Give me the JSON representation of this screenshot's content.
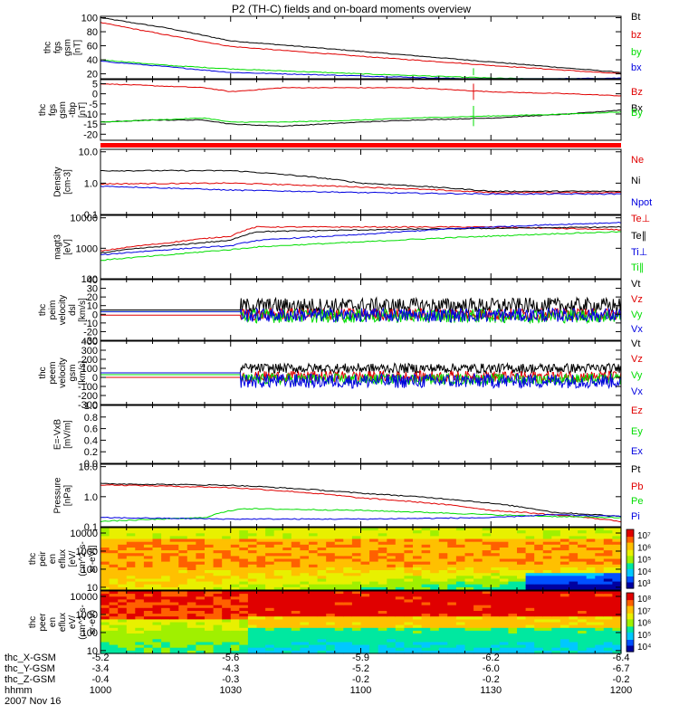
{
  "title": "P2 (TH-C) fields and on-board moments overview",
  "colors": {
    "black": "#000000",
    "red": "#e00000",
    "green": "#00dd00",
    "blue": "#0000e0",
    "bar": "#ff0000"
  },
  "chart_data": [
    {
      "type": "line",
      "ylabel_lines": [
        "thc",
        "fgs",
        "gsm",
        "[nT]"
      ],
      "ylim": [
        13,
        102
      ],
      "yticks": [
        "100",
        "80",
        "60",
        "40",
        "20"
      ],
      "ytick_values": [
        100,
        80,
        60,
        40,
        20
      ],
      "series": [
        {
          "name": "Bt",
          "color": "#000000",
          "x": [
            0,
            0.13,
            0.25,
            0.5,
            0.75,
            1
          ],
          "values": [
            100,
            85,
            67,
            52,
            37,
            22
          ]
        },
        {
          "name": "bz",
          "color": "#e00000",
          "x": [
            0,
            0.13,
            0.25,
            0.5,
            0.75,
            1
          ],
          "values": [
            93,
            75,
            59,
            45,
            32,
            20
          ]
        },
        {
          "name": "by",
          "color": "#00dd00",
          "x": [
            0,
            0.13,
            0.25,
            0.5,
            0.75,
            1
          ],
          "values": [
            40,
            32,
            27,
            20,
            14,
            10
          ]
        },
        {
          "name": "bx",
          "color": "#0000e0",
          "x": [
            0,
            0.13,
            0.25,
            0.5,
            0.75,
            1
          ],
          "values": [
            38,
            30,
            22,
            17,
            12,
            14
          ]
        }
      ]
    },
    {
      "type": "line",
      "ylabel_lines": [
        "thc",
        "fgs",
        "gsm",
        "-tbp",
        "[nT]"
      ],
      "ylim": [
        -23,
        7
      ],
      "yticks": [
        "5",
        "0",
        "-5",
        "-10",
        "-15",
        "-20"
      ],
      "ytick_values": [
        5,
        0,
        -5,
        -10,
        -15,
        -20
      ],
      "series": [
        {
          "name": "Bz",
          "color": "#e00000",
          "x": [
            0,
            0.1,
            0.2,
            0.25,
            0.35,
            0.5,
            0.6,
            0.75,
            0.9,
            1
          ],
          "values": [
            5,
            4,
            3,
            1,
            3,
            3,
            3,
            1,
            0,
            -1
          ]
        },
        {
          "name": "Bx",
          "color": "#000000",
          "x": [
            0,
            0.1,
            0.2,
            0.25,
            0.35,
            0.5,
            0.6,
            0.75,
            0.9,
            1
          ],
          "values": [
            -14,
            -13,
            -13,
            -15,
            -16,
            -14,
            -13,
            -12,
            -10,
            -8
          ]
        },
        {
          "name": "By",
          "color": "#00dd00",
          "x": [
            0,
            0.1,
            0.2,
            0.25,
            0.35,
            0.5,
            0.6,
            0.75,
            0.9,
            1
          ],
          "values": [
            -14,
            -13,
            -12,
            -14,
            -14,
            -13,
            -12,
            -11,
            -10,
            -9
          ]
        }
      ]
    },
    {
      "type": "line",
      "log": true,
      "ylabel_lines": [
        "Density",
        "[cm-3]"
      ],
      "ylim": [
        0.1,
        12
      ],
      "yticks": [
        "10.0",
        "1.0",
        "0.1"
      ],
      "ytick_values": [
        10,
        1,
        0.1
      ],
      "series": [
        {
          "name": "Ne",
          "color": "#e00000",
          "x": [
            0,
            0.25,
            0.5,
            0.75,
            1
          ],
          "values": [
            0.95,
            1.0,
            0.75,
            0.5,
            0.5
          ]
        },
        {
          "name": "Ni",
          "color": "#000000",
          "x": [
            0,
            0.25,
            0.5,
            0.75,
            1
          ],
          "values": [
            2.5,
            2.5,
            1.0,
            0.55,
            0.55
          ]
        },
        {
          "name": "Npot",
          "color": "#0000e0",
          "x": [
            0,
            0.25,
            0.5,
            0.75,
            1
          ],
          "values": [
            0.8,
            0.6,
            0.5,
            0.45,
            0.45
          ]
        }
      ]
    },
    {
      "type": "line",
      "log": true,
      "ylabel_lines": [
        "magt3",
        "[eV]"
      ],
      "ylim": [
        100,
        12000
      ],
      "yticks": [
        "10000",
        "1000",
        "100"
      ],
      "ytick_values": [
        10000,
        1000,
        100
      ],
      "series": [
        {
          "name": "Te⊥",
          "color": "#e00000",
          "x": [
            0,
            0.13,
            0.25,
            0.3,
            0.5,
            0.75,
            1
          ],
          "values": [
            800,
            1500,
            2500,
            5000,
            5000,
            5000,
            4000
          ]
        },
        {
          "name": "Te∥",
          "color": "#000000",
          "x": [
            0,
            0.13,
            0.25,
            0.3,
            0.5,
            0.75,
            1
          ],
          "values": [
            700,
            1200,
            1800,
            3500,
            4000,
            4500,
            5000
          ]
        },
        {
          "name": "Ti⊥",
          "color": "#0000e0",
          "x": [
            0,
            0.13,
            0.25,
            0.3,
            0.5,
            0.75,
            1
          ],
          "values": [
            600,
            900,
            1200,
            1800,
            2800,
            5000,
            7000
          ]
        },
        {
          "name": "Ti∥",
          "color": "#00dd00",
          "x": [
            0,
            0.13,
            0.25,
            0.3,
            0.5,
            0.75,
            1
          ],
          "values": [
            400,
            600,
            900,
            1100,
            1600,
            2500,
            3500
          ]
        }
      ]
    },
    {
      "type": "line",
      "ylabel_lines": [
        "thc",
        "peim",
        "velocity",
        "dsl",
        "[km/s]"
      ],
      "ylim": [
        -30,
        40
      ],
      "yticks": [
        "40",
        "30",
        "20",
        "10",
        "0",
        "-10",
        "-20",
        "-30"
      ],
      "ytick_values": [
        40,
        30,
        20,
        10,
        0,
        -10,
        -20,
        -30
      ],
      "noise_start": 0.27,
      "series": [
        {
          "name": "Vt",
          "color": "#000000",
          "pre": 5,
          "mean": 10,
          "amp": 9
        },
        {
          "name": "Vz",
          "color": "#e00000",
          "pre": -1,
          "mean": 0,
          "amp": 7
        },
        {
          "name": "Vy",
          "color": "#00dd00",
          "pre": 3,
          "mean": -2,
          "amp": 8
        },
        {
          "name": "Vx",
          "color": "#0000e0",
          "pre": 3,
          "mean": -1,
          "amp": 8
        }
      ]
    },
    {
      "type": "line",
      "ylabel_lines": [
        "thc",
        "peem",
        "velocity",
        "gsm",
        "[km/s]"
      ],
      "ylim": [
        -300,
        400
      ],
      "yticks": [
        "400",
        "300",
        "200",
        "100",
        "0",
        "-100",
        "-200",
        "-300"
      ],
      "ytick_values": [
        400,
        300,
        200,
        100,
        0,
        -100,
        -200,
        -300
      ],
      "noise_start": 0.27,
      "series": [
        {
          "name": "Vt",
          "color": "#000000",
          "pre": 50,
          "mean": 100,
          "amp": 55
        },
        {
          "name": "Vz",
          "color": "#e00000",
          "pre": 0,
          "mean": 10,
          "amp": 60
        },
        {
          "name": "Vy",
          "color": "#00dd00",
          "pre": 30,
          "mean": -20,
          "amp": 60
        },
        {
          "name": "Vx",
          "color": "#0000e0",
          "pre": 50,
          "mean": -40,
          "amp": 80
        }
      ]
    },
    {
      "type": "line",
      "ylabel_lines": [
        "E=-VxB",
        "[mV/m]"
      ],
      "ylim": [
        0,
        1
      ],
      "yticks": [
        "1.0",
        "0.8",
        "0.6",
        "0.4",
        "0.2",
        "0.0"
      ],
      "ytick_values": [
        1,
        0.8,
        0.6,
        0.4,
        0.2,
        0
      ],
      "series": [
        {
          "name": "Ez",
          "color": "#e00000"
        },
        {
          "name": "Ey",
          "color": "#00dd00"
        },
        {
          "name": "Ex",
          "color": "#0000e0"
        }
      ]
    },
    {
      "type": "line",
      "log": true,
      "ylabel_lines": [
        "Pressure",
        "[nPa]"
      ],
      "ylim": [
        0.1,
        12
      ],
      "yticks": [
        "10.0",
        "1.0",
        "0.1"
      ],
      "ytick_values": [
        10,
        1,
        0.1
      ],
      "series": [
        {
          "name": "Pt",
          "color": "#000000",
          "x": [
            0,
            0.25,
            0.5,
            0.75,
            0.87,
            1
          ],
          "values": [
            2.7,
            2.4,
            1.3,
            0.6,
            0.3,
            0.22
          ]
        },
        {
          "name": "Pb",
          "color": "#e00000",
          "x": [
            0,
            0.25,
            0.5,
            0.75,
            0.87,
            1
          ],
          "values": [
            2.5,
            2.0,
            0.9,
            0.35,
            0.25,
            0.15
          ]
        },
        {
          "name": "Pe",
          "color": "#00dd00",
          "x": [
            0,
            0.2,
            0.27,
            0.5,
            0.75,
            0.87,
            1
          ],
          "values": [
            0.15,
            0.2,
            0.4,
            0.35,
            0.25,
            0.22,
            0.2
          ]
        },
        {
          "name": "Pi",
          "color": "#0000e0",
          "x": [
            0,
            0.25,
            0.5,
            0.75,
            0.87,
            1
          ],
          "values": [
            0.2,
            0.18,
            0.18,
            0.2,
            0.25,
            0.22
          ]
        }
      ]
    },
    {
      "type": "heatmap",
      "ylabel_lines": [
        "thc",
        "peir",
        "en",
        "eflux",
        "[eV/",
        "(cm^2-s-",
        "sr-eV)]"
      ],
      "yticks": [
        "10000",
        "1000",
        "100",
        "10"
      ],
      "ytick_values": [
        10000,
        1000,
        100,
        10
      ],
      "ylim": [
        7,
        20000
      ],
      "colorbar_ticks": [
        "10⁷",
        "10⁶",
        "10⁵",
        "10⁴",
        "10³"
      ]
    },
    {
      "type": "heatmap",
      "ylabel_lines": [
        "thc",
        "peer",
        "en",
        "eflux",
        "eV/",
        "(cm^2-s-",
        "sr-eV)"
      ],
      "yticks": [
        "10000",
        "1000",
        "100",
        "10"
      ],
      "ytick_values": [
        10000,
        1000,
        100,
        10
      ],
      "ylim": [
        7,
        20000
      ],
      "colorbar_ticks": [
        "10⁸",
        "10⁷",
        "10⁶",
        "10⁵",
        "10⁴"
      ]
    }
  ],
  "footer": {
    "row_labels": [
      "thc_X-GSM",
      "thc_Y-GSM",
      "thc_Z-GSM",
      "hhmm",
      "2007 Nov 16"
    ],
    "x_gsm": [
      "-5.2",
      "-5.6",
      "-5.9",
      "-6.2",
      "-6.4"
    ],
    "y_gsm": [
      "-3.4",
      "-4.3",
      "-5.2",
      "-6.0",
      "-6.7"
    ],
    "z_gsm": [
      "-0.4",
      "-0.3",
      "-0.2",
      "-0.2",
      "-0.2"
    ],
    "hhmm": [
      "1000",
      "1030",
      "1100",
      "1130",
      "1200"
    ]
  }
}
